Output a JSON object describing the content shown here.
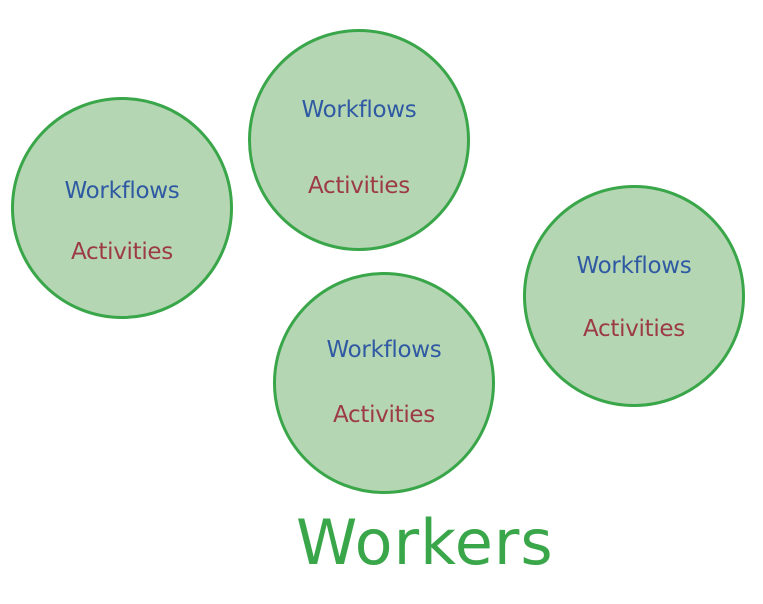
{
  "title": "Workers",
  "workers": [
    {
      "workflows": "Workflows",
      "activities": "Activities"
    },
    {
      "workflows": "Workflows",
      "activities": "Activities"
    },
    {
      "workflows": "Workflows",
      "activities": "Activities"
    },
    {
      "workflows": "Workflows",
      "activities": "Activities"
    }
  ],
  "colors": {
    "circle_fill": "#b5d6b3",
    "circle_stroke": "#3aa64a",
    "workflows_text": "#2f5aa3",
    "activities_text": "#9c3a45",
    "title_text": "#3aa64a"
  }
}
